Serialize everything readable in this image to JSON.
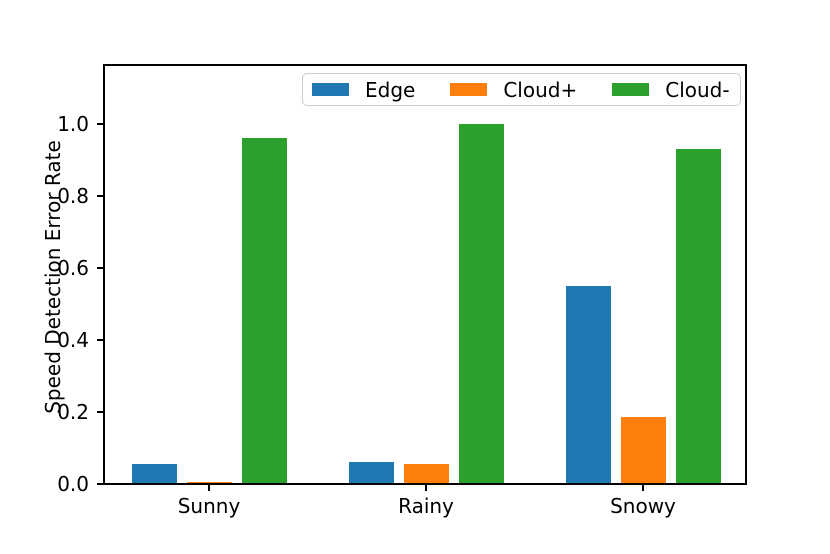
{
  "chart_data": {
    "type": "bar",
    "title": "",
    "categories": [
      "Sunny",
      "Rainy",
      "Snowy"
    ],
    "series": [
      {
        "name": "Edge",
        "color": "#1f77b4",
        "values": [
          0.055,
          0.06,
          0.55
        ]
      },
      {
        "name": "Cloud+",
        "color": "#ff7f0e",
        "values": [
          0.005,
          0.055,
          0.185
        ]
      },
      {
        "name": "Cloud-",
        "color": "#2ca02c",
        "values": [
          0.96,
          1.0,
          0.93
        ]
      }
    ],
    "xlabel": "",
    "ylabel": "Speed Detection Error Rate",
    "ytick_labels": [
      "0.0",
      "0.2",
      "0.4",
      "0.6",
      "0.8",
      "1.0"
    ],
    "ytick_values": [
      0,
      0.2,
      0.4,
      0.6,
      0.8,
      1.0
    ],
    "ylim": [
      0,
      1.17
    ],
    "grid": false,
    "legend": {
      "position": "upper center inside axes",
      "entries": [
        "Edge",
        "Cloud+",
        "Cloud-"
      ]
    },
    "colors": {
      "edge_series": "#1f77b4",
      "cloud_plus_series": "#ff7f0e",
      "cloud_minus_series": "#2ca02c",
      "axes": "#000000",
      "legend_border": "#cccccc",
      "background": "#ffffff"
    }
  }
}
